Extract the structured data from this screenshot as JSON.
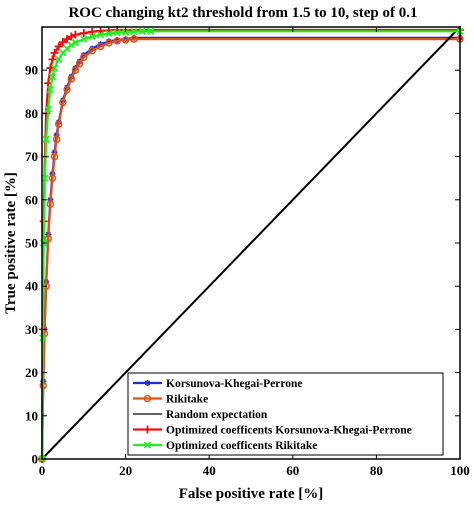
{
  "chart_data": {
    "type": "line",
    "title": "ROC changing kt2 threshold from 1.5 to 10, step of 0.1",
    "xlabel": "False positive rate [%]",
    "ylabel": "True positive rate [%]",
    "xlim": [
      0,
      100
    ],
    "ylim": [
      0,
      100
    ],
    "xticks": [
      0,
      20,
      40,
      60,
      80,
      100
    ],
    "yticks": [
      0,
      10,
      20,
      30,
      40,
      50,
      60,
      70,
      80,
      90
    ],
    "grid": false,
    "legend_position": "bottom-left",
    "series": [
      {
        "name": "Korsunova-Khegai-Perrone",
        "color": "#1f2fd8",
        "marker": "asterisk",
        "x": [
          0,
          0.3,
          0.6,
          1,
          1.5,
          2,
          2.5,
          3,
          3.5,
          4,
          5,
          6,
          7,
          8,
          9,
          10,
          12,
          14,
          16,
          18,
          20,
          22,
          100
        ],
        "y": [
          0,
          18,
          30,
          41,
          52,
          60,
          66,
          71,
          75,
          78,
          83,
          86,
          88.5,
          90.5,
          92,
          93.5,
          95,
          96,
          96.7,
          97,
          97.2,
          97.5,
          97.5
        ]
      },
      {
        "name": "Rikitake",
        "color": "#d9541b",
        "marker": "circle",
        "x": [
          0,
          0.3,
          0.6,
          1,
          1.5,
          2,
          2.5,
          3,
          3.5,
          4,
          5,
          6,
          7,
          8,
          9,
          10,
          12,
          14,
          16,
          18,
          20,
          22,
          100
        ],
        "y": [
          0,
          17,
          29,
          40,
          51,
          59,
          65,
          70,
          74,
          77.5,
          82.5,
          85.5,
          88,
          90,
          91.5,
          93,
          94.5,
          95.5,
          96.3,
          96.8,
          97,
          97.2,
          97.2
        ]
      },
      {
        "name": "Random expectation",
        "color": "#000000",
        "marker": "none",
        "x": [
          0,
          100
        ],
        "y": [
          0,
          100
        ]
      },
      {
        "name": "Optimized coefficents Korsunova-Khegai-Perrone",
        "color": "#ee1111",
        "marker": "plus",
        "x": [
          0,
          0.2,
          0.4,
          0.7,
          1,
          1.5,
          2,
          2.5,
          3,
          4,
          5,
          6,
          7,
          8,
          10,
          12,
          14,
          16,
          18,
          100
        ],
        "y": [
          0,
          30,
          55,
          70,
          80,
          87,
          90.5,
          92.5,
          94,
          95.5,
          96.5,
          97.2,
          97.8,
          98.2,
          98.6,
          98.9,
          99.1,
          99.2,
          99.3,
          99.3
        ]
      },
      {
        "name": "Optimized coefficents Rikitake",
        "color": "#22ee22",
        "marker": "x",
        "x": [
          0,
          0.2,
          0.4,
          0.7,
          1,
          1.5,
          2,
          2.5,
          3,
          4,
          5,
          6,
          7,
          8,
          10,
          12,
          14,
          16,
          18,
          20,
          22,
          24,
          26,
          100
        ],
        "y": [
          0,
          28,
          50,
          65,
          74,
          81,
          85.5,
          88.5,
          90.5,
          92.5,
          94,
          95,
          95.8,
          96.4,
          97.2,
          97.8,
          98.2,
          98.5,
          98.7,
          98.8,
          98.9,
          99,
          99,
          99
        ]
      }
    ]
  }
}
